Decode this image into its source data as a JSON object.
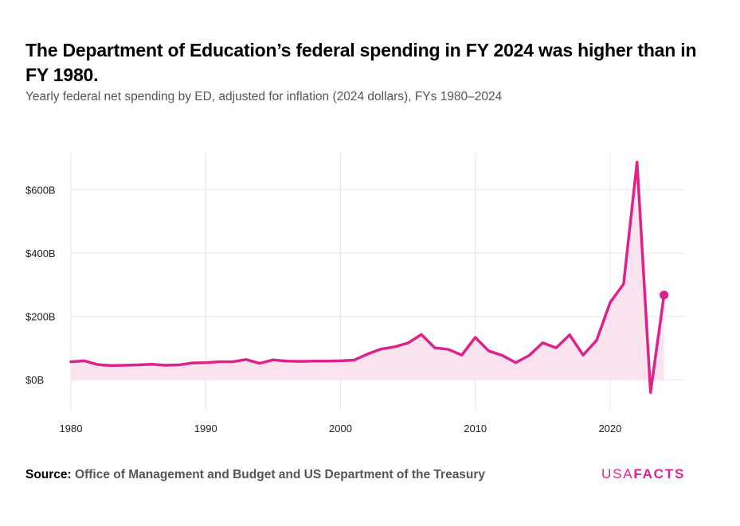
{
  "title": "The Department of Education’s federal spending in FY 2024 was higher than in FY 1980.",
  "subtitle": "Yearly federal net spending by ED, adjusted for inflation (2024 dollars), FYs 1980–2024",
  "source": {
    "label": "Source:",
    "text": "Office of Management and Budget and US Department of the Treasury"
  },
  "logo": {
    "usa": "USA",
    "facts": "FACTS"
  },
  "colors": {
    "line": "#e0218a",
    "area": "#fbe4f0",
    "grid": "#e6e6e6"
  },
  "chart_data": {
    "type": "area",
    "title": "The Department of Education’s federal spending in FY 2024 was higher than in FY 1980.",
    "subtitle": "Yearly federal net spending by ED, adjusted for inflation (2024 dollars), FYs 1980–2024",
    "xlabel": "",
    "ylabel": "",
    "x_ticks": [
      "1980",
      "1990",
      "2000",
      "2010",
      "2020"
    ],
    "x_tick_values": [
      1980,
      1990,
      2000,
      2010,
      2020
    ],
    "y_ticks": [
      "$0B",
      "$200B",
      "$400B",
      "$600B"
    ],
    "y_tick_values": [
      0,
      200,
      400,
      600
    ],
    "xlim": [
      1980,
      2025.5
    ],
    "ylim": [
      -95,
      715
    ],
    "grid": true,
    "legend": "none",
    "unit": "billions of 2024 dollars",
    "x": [
      1980,
      1981,
      1982,
      1983,
      1984,
      1985,
      1986,
      1987,
      1988,
      1989,
      1990,
      1991,
      1992,
      1993,
      1994,
      1995,
      1996,
      1997,
      1998,
      1999,
      2000,
      2001,
      2002,
      2003,
      2004,
      2005,
      2006,
      2007,
      2008,
      2009,
      2010,
      2011,
      2012,
      2013,
      2014,
      2015,
      2016,
      2017,
      2018,
      2019,
      2020,
      2021,
      2022,
      2023,
      2024
    ],
    "series": [
      {
        "values": [
          57,
          60,
          48,
          45,
          46,
          47,
          49,
          46,
          47,
          53,
          54,
          57,
          57,
          64,
          52,
          63,
          59,
          58,
          59,
          59,
          60,
          62,
          81,
          97,
          104,
          116,
          143,
          101,
          96,
          78,
          134,
          91,
          77,
          54,
          77,
          117,
          101,
          142,
          78,
          125,
          244,
          303,
          688,
          -40,
          268
        ],
        "highlight_last": true
      }
    ]
  }
}
